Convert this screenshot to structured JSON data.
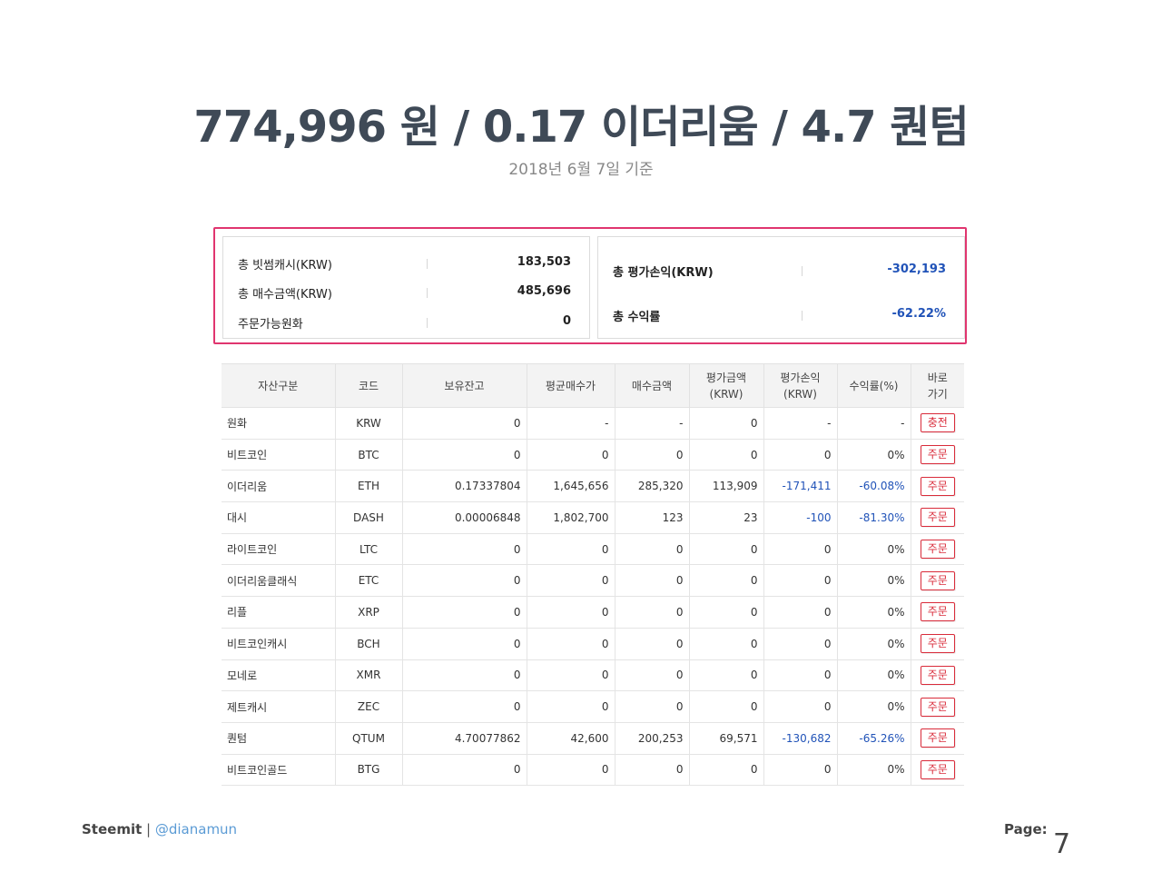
{
  "header": {
    "title": "774,996 원 / 0.17 이더리움 / 4.7 퀀텀",
    "subtitle": "2018년 6월 7일 기준"
  },
  "summary": {
    "left": [
      {
        "label": "총 빗썸캐시(KRW)",
        "value": "183,503"
      },
      {
        "label": "총 매수금액(KRW)",
        "value": "485,696"
      },
      {
        "label": "주문가능원화",
        "value": "0"
      }
    ],
    "right": [
      {
        "label": "총 평가손익(KRW)",
        "value": "-302,193"
      },
      {
        "label": "총 수익률",
        "value": "-62.22%"
      }
    ]
  },
  "table": {
    "headers": [
      "자산구분",
      "코드",
      "보유잔고",
      "평균매수가",
      "매수금액",
      "평가금액\n(KRW)",
      "평가손익\n(KRW)",
      "수익률(%)",
      "바로\n가기"
    ],
    "rows": [
      {
        "name": "원화",
        "code": "KRW",
        "balance": "0",
        "avg": "-",
        "buy": "-",
        "eval": "0",
        "pl": "-",
        "rate": "-",
        "action": "충전"
      },
      {
        "name": "비트코인",
        "code": "BTC",
        "balance": "0",
        "avg": "0",
        "buy": "0",
        "eval": "0",
        "pl": "0",
        "rate": "0%",
        "action": "주문"
      },
      {
        "name": "이더리움",
        "code": "ETH",
        "balance": "0.17337804",
        "avg": "1,645,656",
        "buy": "285,320",
        "eval": "113,909",
        "pl": "-171,411",
        "rate": "-60.08%",
        "action": "주문"
      },
      {
        "name": "대시",
        "code": "DASH",
        "balance": "0.00006848",
        "avg": "1,802,700",
        "buy": "123",
        "eval": "23",
        "pl": "-100",
        "rate": "-81.30%",
        "action": "주문"
      },
      {
        "name": "라이트코인",
        "code": "LTC",
        "balance": "0",
        "avg": "0",
        "buy": "0",
        "eval": "0",
        "pl": "0",
        "rate": "0%",
        "action": "주문"
      },
      {
        "name": "이더리움클래식",
        "code": "ETC",
        "balance": "0",
        "avg": "0",
        "buy": "0",
        "eval": "0",
        "pl": "0",
        "rate": "0%",
        "action": "주문"
      },
      {
        "name": "리플",
        "code": "XRP",
        "balance": "0",
        "avg": "0",
        "buy": "0",
        "eval": "0",
        "pl": "0",
        "rate": "0%",
        "action": "주문"
      },
      {
        "name": "비트코인캐시",
        "code": "BCH",
        "balance": "0",
        "avg": "0",
        "buy": "0",
        "eval": "0",
        "pl": "0",
        "rate": "0%",
        "action": "주문"
      },
      {
        "name": "모네로",
        "code": "XMR",
        "balance": "0",
        "avg": "0",
        "buy": "0",
        "eval": "0",
        "pl": "0",
        "rate": "0%",
        "action": "주문"
      },
      {
        "name": "제트캐시",
        "code": "ZEC",
        "balance": "0",
        "avg": "0",
        "buy": "0",
        "eval": "0",
        "pl": "0",
        "rate": "0%",
        "action": "주문"
      },
      {
        "name": "퀀텀",
        "code": "QTUM",
        "balance": "4.70077862",
        "avg": "42,600",
        "buy": "200,253",
        "eval": "69,571",
        "pl": "-130,682",
        "rate": "-65.26%",
        "action": "주문"
      },
      {
        "name": "비트코인골드",
        "code": "BTG",
        "balance": "0",
        "avg": "0",
        "buy": "0",
        "eval": "0",
        "pl": "0",
        "rate": "0%",
        "action": "주문"
      }
    ]
  },
  "footer": {
    "brand": "Steemit",
    "separator": " | ",
    "handle": "@dianamun",
    "page_label": "Page:",
    "page_number": "7"
  },
  "colors": {
    "accent_frame": "#e0356f",
    "negative": "#2153b8",
    "order_button": "#d92b3a"
  }
}
